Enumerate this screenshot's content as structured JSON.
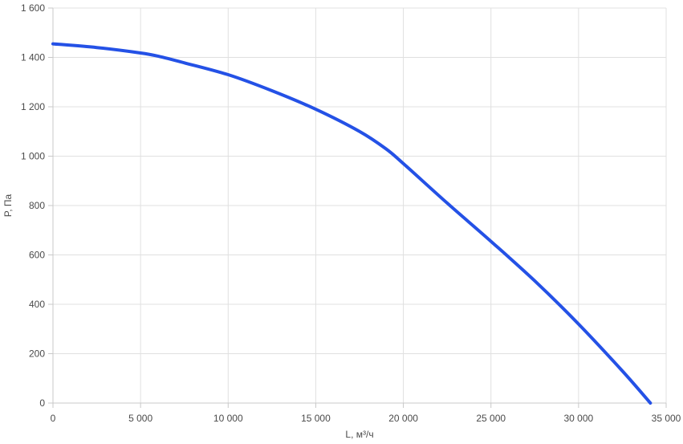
{
  "chart_data": {
    "type": "line",
    "title": "",
    "xlabel": "L, м³/ч",
    "ylabel": "P, Па",
    "xlim": [
      0,
      35000
    ],
    "ylim": [
      0,
      1600
    ],
    "grid": true,
    "legend": "none",
    "x_ticks": [
      {
        "value": 0,
        "label": "0"
      },
      {
        "value": 5000,
        "label": "5 000"
      },
      {
        "value": 10000,
        "label": "10 000"
      },
      {
        "value": 15000,
        "label": "15 000"
      },
      {
        "value": 20000,
        "label": "20 000"
      },
      {
        "value": 25000,
        "label": "25 000"
      },
      {
        "value": 30000,
        "label": "30 000"
      },
      {
        "value": 35000,
        "label": "35 000"
      }
    ],
    "y_ticks": [
      {
        "value": 0,
        "label": "0"
      },
      {
        "value": 200,
        "label": "200"
      },
      {
        "value": 400,
        "label": "400"
      },
      {
        "value": 600,
        "label": "600"
      },
      {
        "value": 800,
        "label": "800"
      },
      {
        "value": 1000,
        "label": "1 000"
      },
      {
        "value": 1200,
        "label": "1 200"
      },
      {
        "value": 1400,
        "label": "1 400"
      },
      {
        "value": 1600,
        "label": "1 600"
      }
    ],
    "series": [
      {
        "color": "#2451e6",
        "points": [
          [
            0,
            1455
          ],
          [
            2500,
            1440
          ],
          [
            5000,
            1418
          ],
          [
            6000,
            1405
          ],
          [
            7500,
            1378
          ],
          [
            10000,
            1330
          ],
          [
            12500,
            1265
          ],
          [
            15000,
            1190
          ],
          [
            17500,
            1100
          ],
          [
            19000,
            1030
          ],
          [
            20000,
            970
          ],
          [
            22500,
            810
          ],
          [
            25000,
            655
          ],
          [
            27500,
            495
          ],
          [
            30000,
            320
          ],
          [
            32500,
            130
          ],
          [
            34100,
            0
          ]
        ]
      }
    ],
    "colors": {
      "grid": "#e0e0e0",
      "axis": "#c8c8c8",
      "text": "#4a4a4a"
    }
  }
}
